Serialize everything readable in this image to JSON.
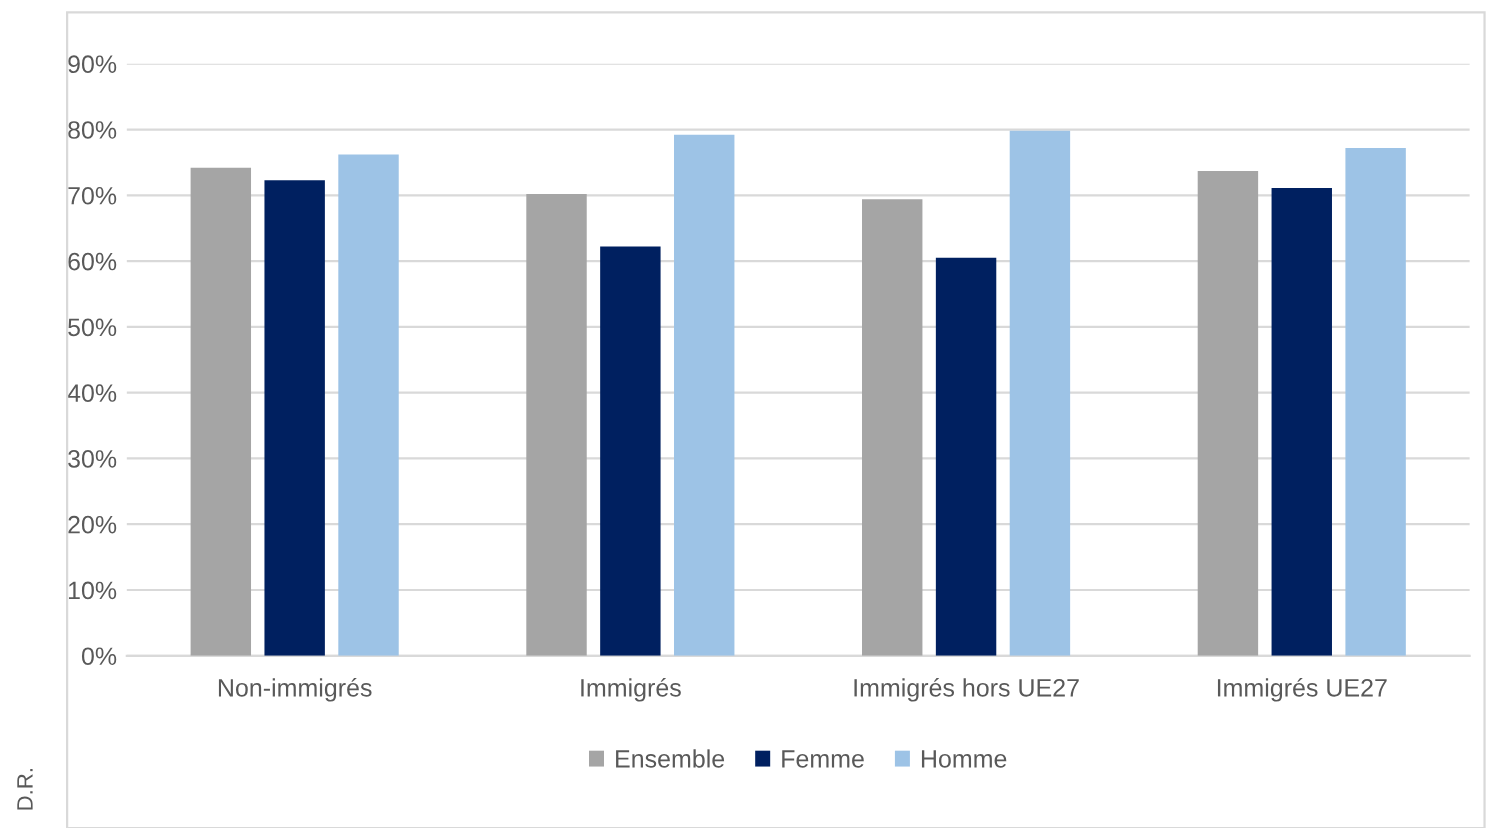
{
  "chart_data": {
    "type": "bar",
    "categories": [
      "Non-immigrés",
      "Immigrés",
      "Immigrés hors UE27",
      "Immigrés UE27"
    ],
    "series": [
      {
        "name": "Ensemble",
        "color": "#a5a5a5",
        "values": [
          74.2,
          70.2,
          69.4,
          73.7
        ]
      },
      {
        "name": "Femme",
        "color": "#002060",
        "values": [
          72.3,
          62.2,
          60.5,
          71.1
        ]
      },
      {
        "name": "Homme",
        "color": "#9dc3e6",
        "values": [
          76.2,
          79.2,
          79.8,
          77.2
        ]
      }
    ],
    "ylim": [
      0,
      90
    ],
    "yticks": [
      {
        "value": 0,
        "label": "0%"
      },
      {
        "value": 10,
        "label": "10%"
      },
      {
        "value": 20,
        "label": "20%"
      },
      {
        "value": 30,
        "label": "30%"
      },
      {
        "value": 40,
        "label": "40%"
      },
      {
        "value": 50,
        "label": "50%"
      },
      {
        "value": 60,
        "label": "60%"
      },
      {
        "value": 70,
        "label": "70%"
      },
      {
        "value": 80,
        "label": "80%"
      },
      {
        "value": 90,
        "label": "90%"
      }
    ],
    "grid": "y",
    "legend": "bottom",
    "annotations": [
      "D.R."
    ]
  }
}
